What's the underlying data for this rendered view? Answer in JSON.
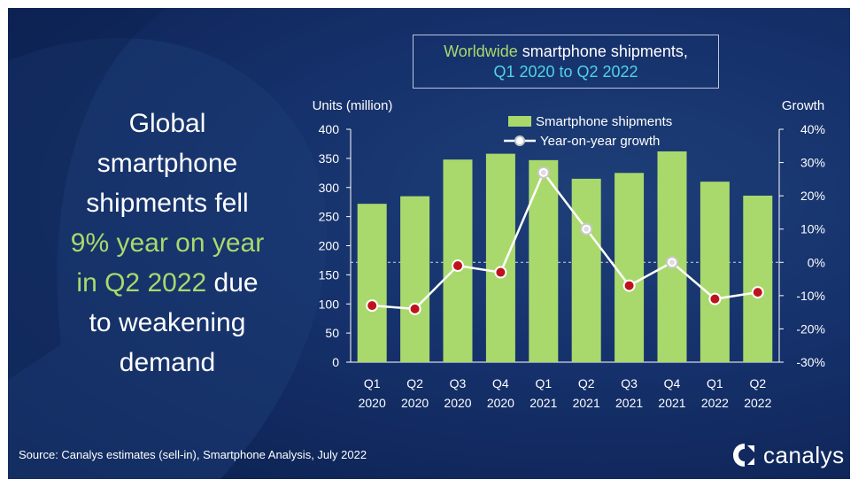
{
  "headline": {
    "line1": "Global",
    "line2": "smartphone",
    "line3": "shipments fell",
    "line4_highlight": "9% year on year",
    "line5_highlight": "in Q2 2022",
    "line5_rest": " due",
    "line6": "to weakening",
    "line7": "demand"
  },
  "title_box": {
    "part1": "Worldwide",
    "part2": " smartphone shipments,",
    "line2": "Q1 2020 to Q2 2022"
  },
  "source": "Source: Canalys estimates (sell-in), Smartphone Analysis, July 2022",
  "logo_text": "canalys",
  "colors": {
    "bar": "#a9d96c",
    "line": "#ffffff",
    "marker": "#c0121c",
    "background": "#15306a"
  },
  "chart_data": {
    "type": "bar",
    "categories": [
      [
        "Q1",
        "2020"
      ],
      [
        "Q2",
        "2020"
      ],
      [
        "Q3",
        "2020"
      ],
      [
        "Q4",
        "2020"
      ],
      [
        "Q1",
        "2021"
      ],
      [
        "Q2",
        "2021"
      ],
      [
        "Q3",
        "2021"
      ],
      [
        "Q4",
        "2021"
      ],
      [
        "Q1",
        "2022"
      ],
      [
        "Q2",
        "2022"
      ]
    ],
    "ylabel": "Units (million)",
    "y2label": "Growth",
    "ylim": [
      0,
      400
    ],
    "y2lim": [
      -30,
      40
    ],
    "yticks": [
      "0",
      "50",
      "100",
      "150",
      "200",
      "250",
      "300",
      "350",
      "400"
    ],
    "y2ticks": [
      "-30%",
      "-20%",
      "-10%",
      "0%",
      "10%",
      "20%",
      "30%",
      "40%"
    ],
    "series": [
      {
        "name": "Smartphone shipments",
        "type": "bar",
        "axis": "left",
        "values": [
          272,
          285,
          348,
          358,
          347,
          315,
          325,
          362,
          310,
          286
        ]
      },
      {
        "name": "Year-on-year growth",
        "type": "line",
        "axis": "right",
        "unit": "%",
        "values": [
          -13,
          -14,
          -1,
          -3,
          27,
          10,
          -7,
          0,
          -11,
          -9
        ]
      }
    ],
    "grid": false,
    "zero_growth_reference": "dashed",
    "legend": "top-center"
  }
}
